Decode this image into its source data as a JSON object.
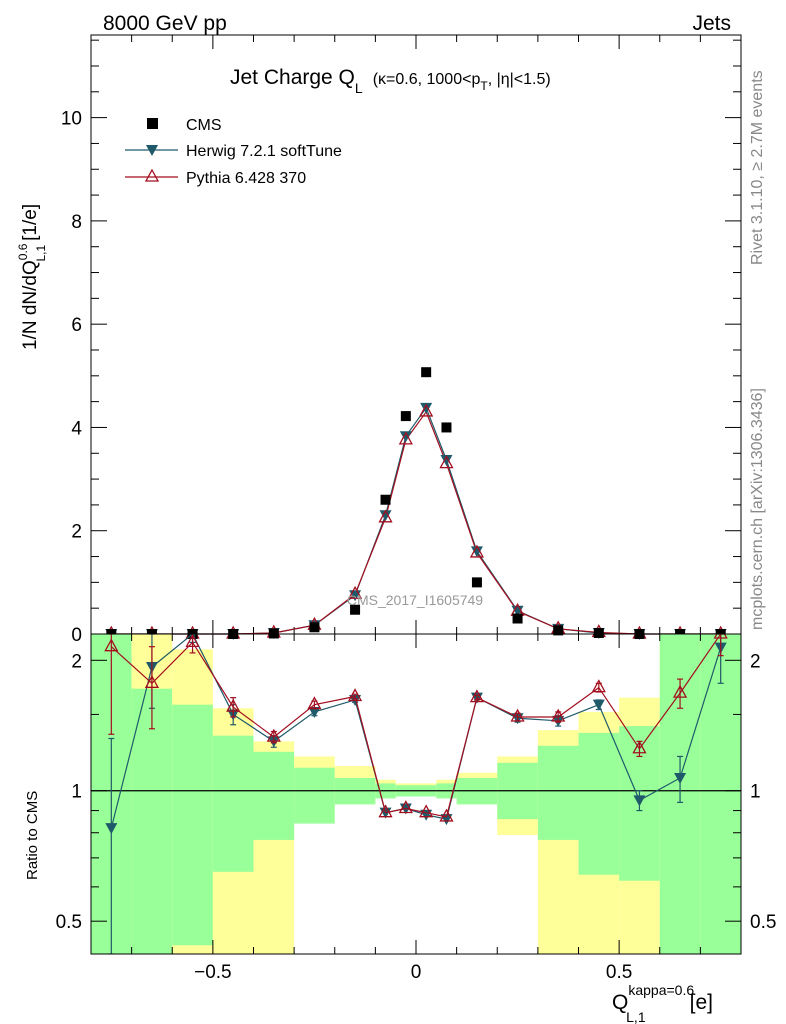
{
  "header": {
    "energy_label": "8000 GeV pp",
    "process_label": "Jets",
    "rivet_label": "Rivet 3.1.10, ≥ 2.7M events",
    "mcplots_label": "mcplots.cern.ch [arXiv:1306.3436]",
    "analysis_label": "CMS_2017_I1605749"
  },
  "chart_data": [
    {
      "type": "scatter",
      "panel": "main",
      "title": "Jet Charge Q",
      "title_sub": "L",
      "title_detail": "(κ=0.6, 1000<p",
      "title_detail_sub": "T",
      "title_detail_tail": ", |η|<1.5)",
      "ylabel_main": "1/N dN/dQ",
      "ylabel_sup": "0.6",
      "ylabel_sub": "L,1",
      "ylabel_unit": "[1/e]",
      "xlim": [
        -0.8,
        0.8
      ],
      "ylim": [
        0,
        11.6
      ],
      "y_ticks": [
        0,
        2,
        4,
        6,
        8,
        10
      ],
      "y_tick_labels": [
        "0",
        "2",
        "4",
        "6",
        "8",
        "10"
      ],
      "x": [
        -0.75,
        -0.65,
        -0.55,
        -0.45,
        -0.35,
        -0.25,
        -0.15,
        -0.075,
        -0.025,
        0.025,
        0.075,
        0.15,
        0.25,
        0.35,
        0.45,
        0.55,
        0.65,
        0.75
      ],
      "series": [
        {
          "name": "CMS",
          "color": "#000000",
          "marker": "square",
          "values": [
            0.0,
            0.0,
            0.0,
            0.0,
            0.01,
            0.13,
            0.47,
            2.6,
            4.22,
            5.07,
            4.0,
            1.0,
            0.3,
            0.07,
            0.02,
            0.0,
            0.0,
            0.0
          ]
        },
        {
          "name": "Herwig 7.2.1 softTune",
          "color": "#1f5a6a",
          "marker": "triangle-down",
          "values": [
            0.0,
            0.0,
            0.0,
            0.0,
            0.02,
            0.17,
            0.75,
            2.3,
            3.83,
            4.38,
            3.37,
            1.6,
            0.45,
            0.1,
            0.02,
            0.0,
            0.0,
            0.0
          ]
        },
        {
          "name": "Pythia 6.428 370",
          "color": "#a30e1f",
          "marker": "triangle-up-open",
          "values": [
            0.0,
            0.0,
            0.0,
            0.0,
            0.02,
            0.17,
            0.77,
            2.25,
            3.76,
            4.3,
            3.3,
            1.57,
            0.44,
            0.1,
            0.03,
            0.0,
            0.0,
            0.0
          ]
        }
      ]
    },
    {
      "type": "scatter",
      "panel": "ratio",
      "ylabel": "Ratio to CMS",
      "xlabel": "Q",
      "xlabel_sup": "kappa=0.6",
      "xlabel_sub": "L,1",
      "xlabel_unit": "[e]",
      "xlim": [
        -0.8,
        0.8
      ],
      "ylim": [
        0.42,
        2.3
      ],
      "y_ticks": [
        0.5,
        1,
        2
      ],
      "y_tick_labels": [
        "0.5",
        "1",
        "2"
      ],
      "x_ticks": [
        -0.5,
        0,
        0.5
      ],
      "x_tick_labels": [
        "−0.5",
        "0",
        "0.5"
      ],
      "bin_edges": [
        -0.8,
        -0.7,
        -0.6,
        -0.5,
        -0.4,
        -0.3,
        -0.2,
        -0.1,
        -0.05,
        0.0,
        0.05,
        0.1,
        0.2,
        0.3,
        0.4,
        0.5,
        0.6,
        0.7,
        0.8
      ],
      "band_stat_lo": [
        0.42,
        0.42,
        0.44,
        0.65,
        0.77,
        0.84,
        0.93,
        0.96,
        0.97,
        0.97,
        0.96,
        0.93,
        0.86,
        0.77,
        0.64,
        0.62,
        0.42,
        0.42
      ],
      "band_stat_hi": [
        2.3,
        1.72,
        1.58,
        1.34,
        1.23,
        1.13,
        1.07,
        1.04,
        1.03,
        1.03,
        1.04,
        1.07,
        1.16,
        1.27,
        1.36,
        1.41,
        2.3,
        2.3
      ],
      "band_tot_lo": [
        0.42,
        0.42,
        0.42,
        0.42,
        0.42,
        0.91,
        0.96,
        0.98,
        0.98,
        0.98,
        0.98,
        0.96,
        0.79,
        0.42,
        0.42,
        0.42,
        0.42,
        0.42
      ],
      "band_tot_hi": [
        2.3,
        2.3,
        2.12,
        1.55,
        1.3,
        1.2,
        1.14,
        1.06,
        1.04,
        1.04,
        1.06,
        1.1,
        1.2,
        1.38,
        1.52,
        1.64,
        2.3,
        2.3
      ],
      "herwig_ratio": [
        0.82,
        1.93,
        2.32,
        1.5,
        1.3,
        1.52,
        1.62,
        0.89,
        0.91,
        0.88,
        0.86,
        1.64,
        1.47,
        1.45,
        1.58,
        0.95,
        1.07,
        2.14
      ],
      "herwig_err": [
        0.5,
        0.38,
        0.12,
        0.08,
        0.04,
        0.03,
        0.02,
        0.01,
        0.01,
        0.01,
        0.01,
        0.02,
        0.03,
        0.04,
        0.04,
        0.05,
        0.13,
        0.37
      ],
      "pythia_ratio": [
        2.15,
        1.77,
        2.2,
        1.56,
        1.33,
        1.58,
        1.65,
        0.89,
        0.91,
        0.89,
        0.87,
        1.64,
        1.48,
        1.48,
        1.73,
        1.25,
        1.68,
        2.35
      ],
      "pythia_err": [
        0.8,
        0.38,
        0.12,
        0.08,
        0.04,
        0.03,
        0.02,
        0.01,
        0.01,
        0.01,
        0.01,
        0.02,
        0.03,
        0.04,
        0.04,
        0.05,
        0.13,
        0.3
      ]
    }
  ]
}
